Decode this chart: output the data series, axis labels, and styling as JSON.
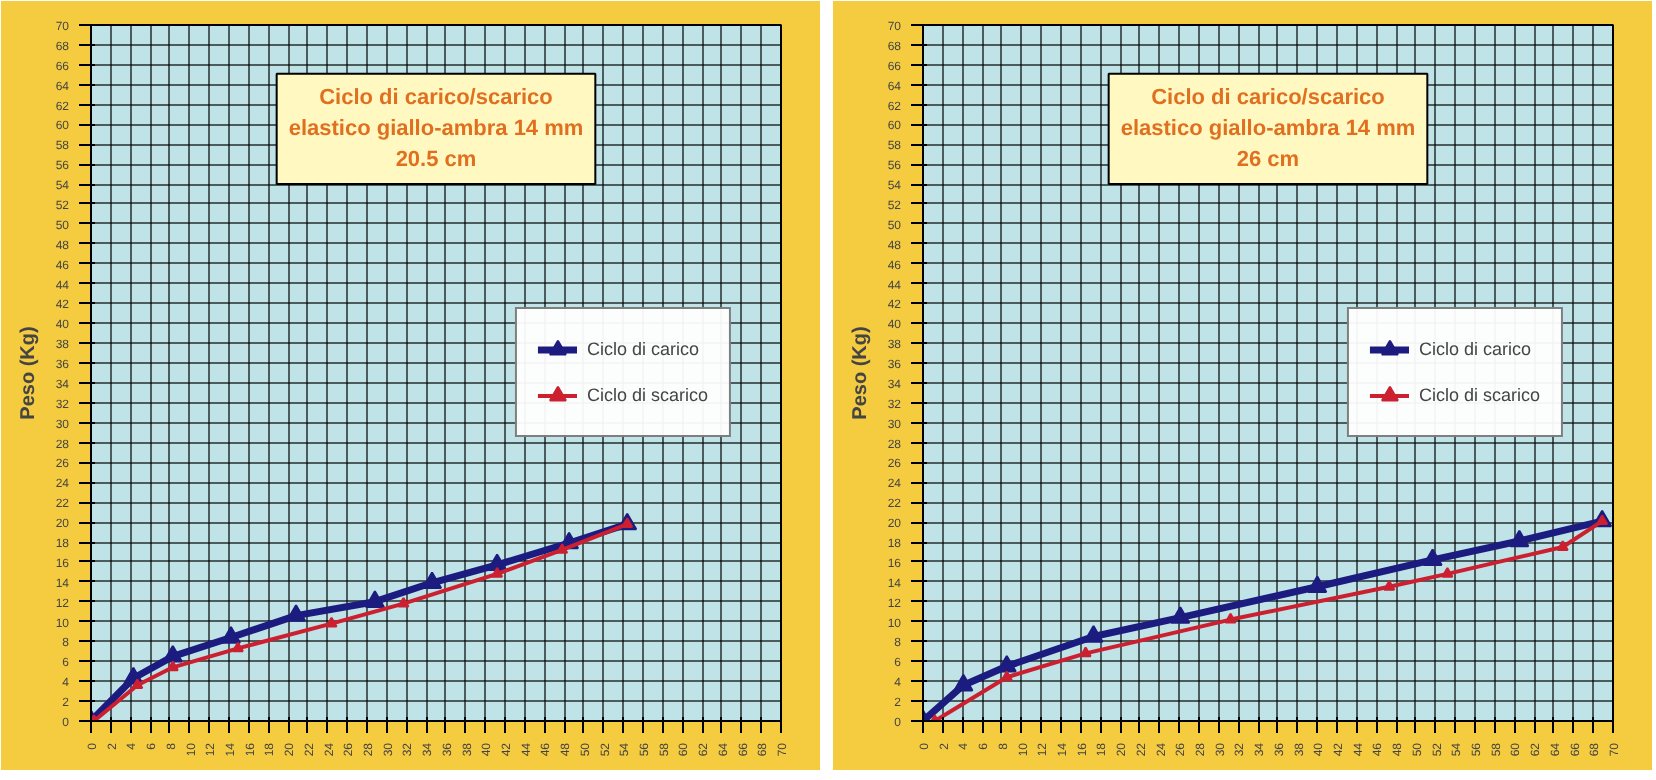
{
  "chart_data": [
    {
      "type": "line",
      "title": "Ciclo di carico/scarico\nelastico giallo-ambra 14 mm\n20.5 cm",
      "ylabel": "Peso (Kg)",
      "xlim": [
        0,
        70
      ],
      "ylim": [
        0,
        70
      ],
      "xticks": [
        0,
        2,
        4,
        6,
        8,
        10,
        12,
        14,
        16,
        18,
        20,
        22,
        24,
        26,
        28,
        30,
        32,
        34,
        36,
        38,
        40,
        42,
        44,
        46,
        48,
        50,
        52,
        54,
        56,
        58,
        60,
        62,
        64,
        66,
        68,
        70
      ],
      "yticks": [
        0,
        2,
        4,
        6,
        8,
        10,
        12,
        14,
        16,
        18,
        20,
        22,
        24,
        26,
        28,
        30,
        32,
        34,
        36,
        38,
        40,
        42,
        44,
        46,
        48,
        50,
        52,
        54,
        56,
        58,
        60,
        62,
        64,
        66,
        68,
        70
      ],
      "grid": true,
      "legend": "right",
      "marker": "triangle",
      "series": [
        {
          "name": "Ciclo di carico",
          "color": "#1c1c80",
          "x": [
            0,
            4.3,
            8.3,
            14.2,
            20.8,
            28.8,
            34.6,
            41.2,
            48.5,
            54.4
          ],
          "values": [
            0,
            4.3,
            6.5,
            8.4,
            10.6,
            12,
            13.9,
            15.7,
            17.9,
            19.8
          ]
        },
        {
          "name": "Ciclo di scarico",
          "color": "#cc2030",
          "x": [
            54.4,
            47.8,
            41.2,
            31.7,
            24.4,
            14.9,
            8.3,
            4.7,
            0.3
          ],
          "values": [
            19.8,
            17.2,
            14.8,
            11.8,
            9.8,
            7.3,
            5.4,
            3.6,
            0
          ]
        }
      ]
    },
    {
      "type": "line",
      "title": "Ciclo di carico/scarico\nelastico giallo-ambra 14 mm\n26 cm",
      "ylabel": "Peso (Kg)",
      "xlim": [
        0,
        70
      ],
      "ylim": [
        0,
        70
      ],
      "xticks": [
        0,
        2,
        4,
        6,
        8,
        10,
        12,
        14,
        16,
        18,
        20,
        22,
        24,
        26,
        28,
        30,
        32,
        34,
        36,
        38,
        40,
        42,
        44,
        46,
        48,
        50,
        52,
        54,
        56,
        58,
        60,
        62,
        64,
        66,
        68,
        70
      ],
      "yticks": [
        0,
        2,
        4,
        6,
        8,
        10,
        12,
        14,
        16,
        18,
        20,
        22,
        24,
        26,
        28,
        30,
        32,
        34,
        36,
        38,
        40,
        42,
        44,
        46,
        48,
        50,
        52,
        54,
        56,
        58,
        60,
        62,
        64,
        66,
        68,
        70
      ],
      "grid": true,
      "legend": "right",
      "marker": "triangle",
      "series": [
        {
          "name": "Ciclo di carico",
          "color": "#1c1c80",
          "x": [
            0,
            4.1,
            8.5,
            17.3,
            26.1,
            40,
            51.7,
            60.5,
            68.9
          ],
          "values": [
            0,
            3.6,
            5.5,
            8.5,
            10.4,
            13.5,
            16.2,
            18.1,
            20.1
          ]
        },
        {
          "name": "Ciclo di scarico",
          "color": "#cc2030",
          "x": [
            68.9,
            64.9,
            53.2,
            47.3,
            31.2,
            16.5,
            8.5,
            1.2
          ],
          "values": [
            20.1,
            17.5,
            14.8,
            13.5,
            10.2,
            6.8,
            4.4,
            0
          ]
        }
      ]
    }
  ]
}
